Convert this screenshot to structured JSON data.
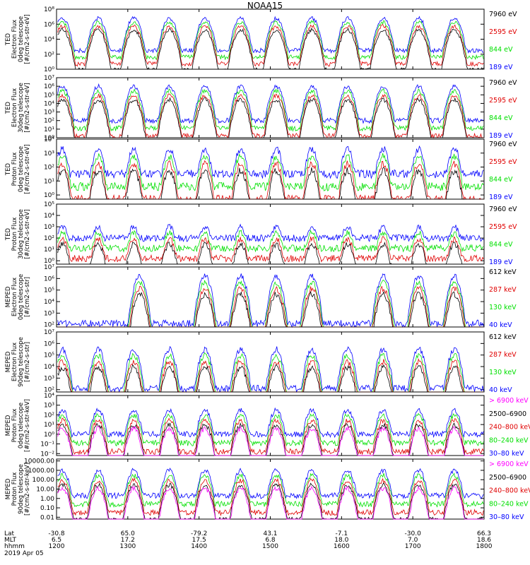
{
  "title": "NOAA15",
  "colors": {
    "black": "#000000",
    "blue": "#0000ff",
    "green": "#00e000",
    "red": "#e00000",
    "magenta": "#ff00ff"
  },
  "chart_data": [
    {
      "type": "line",
      "ylabel": [
        "TED",
        "Electron Flux",
        "0deg telescope",
        "[#/cm2-s-str-eV]"
      ],
      "ylog": true,
      "yticks": [
        [
          "10⁰",
          0
        ],
        [
          "10²",
          2
        ],
        [
          "10⁴",
          4
        ],
        [
          "10⁶",
          6
        ],
        [
          "10⁸",
          8
        ]
      ],
      "ylim_log10": [
        0,
        8
      ],
      "legend": [
        {
          "label": "7960 eV",
          "color": "#000000"
        },
        {
          "label": "2595 eV",
          "color": "#e00000"
        },
        {
          "label": "844 eV",
          "color": "#00e000"
        },
        {
          "label": "189 eV",
          "color": "#0000ff"
        }
      ],
      "peak_times": [
        "12:05",
        "12:35",
        "13:05",
        "13:35",
        "14:05",
        "14:35",
        "15:05",
        "15:35",
        "16:05",
        "16:35",
        "17:05",
        "17:35"
      ],
      "peak_log10": 6.8,
      "base_log10": 2.5
    },
    {
      "type": "line",
      "ylabel": [
        "TED",
        "Electron Flux",
        "30deg telescope",
        "[#/cm2-s-str-eV]"
      ],
      "ylog": true,
      "yticks": [
        [
          "10⁰",
          0
        ],
        [
          "10¹",
          1
        ],
        [
          "10²",
          2
        ],
        [
          "10³",
          3
        ],
        [
          "10⁴",
          4
        ],
        [
          "10⁵",
          5
        ],
        [
          "10⁶",
          6
        ],
        [
          "10⁷",
          7
        ]
      ],
      "ylim_log10": [
        0,
        7
      ],
      "legend": [
        {
          "label": "7960 eV",
          "color": "#000000"
        },
        {
          "label": "2595 eV",
          "color": "#e00000"
        },
        {
          "label": "844 eV",
          "color": "#00e000"
        },
        {
          "label": "189 eV",
          "color": "#0000ff"
        }
      ],
      "peak_times": [
        "12:05",
        "12:35",
        "13:05",
        "13:35",
        "14:05",
        "14:35",
        "15:05",
        "15:35",
        "16:05",
        "16:35",
        "17:05",
        "17:35"
      ],
      "peak_log10": 6.0,
      "base_log10": 2.0
    },
    {
      "type": "line",
      "ylabel": [
        "TED",
        "Proton Flux",
        "0deg telescope",
        "[#/cm2-s-str-eV]"
      ],
      "ylog": true,
      "yticks": [
        [
          "10⁰",
          0
        ],
        [
          "10¹",
          1
        ],
        [
          "10²",
          2
        ],
        [
          "10³",
          3
        ],
        [
          "10⁴",
          4
        ]
      ],
      "ylim_log10": [
        -0.3,
        4
      ],
      "legend": [
        {
          "label": "7960 eV",
          "color": "#000000"
        },
        {
          "label": "2595 eV",
          "color": "#e00000"
        },
        {
          "label": "844 eV",
          "color": "#00e000"
        },
        {
          "label": "189 eV",
          "color": "#0000ff"
        }
      ],
      "peak_times": [
        "12:05",
        "12:35",
        "13:05",
        "13:35",
        "14:05",
        "14:35",
        "15:05",
        "15:35",
        "16:05",
        "16:35",
        "17:05",
        "17:35"
      ],
      "peak_log10": 3.3,
      "base_log10": 1.5
    },
    {
      "type": "line",
      "ylabel": [
        "TED",
        "Proton Flux",
        "30deg telescope",
        "[#/cm2-s-str-eV]"
      ],
      "ylog": true,
      "yticks": [
        [
          "10⁰",
          0
        ],
        [
          "10¹",
          1
        ],
        [
          "10²",
          2
        ],
        [
          "10³",
          3
        ],
        [
          "10⁴",
          4
        ],
        [
          "10⁵",
          5
        ]
      ],
      "ylim_log10": [
        -0.3,
        5
      ],
      "legend": [
        {
          "label": "7960 eV",
          "color": "#000000"
        },
        {
          "label": "2595 eV",
          "color": "#e00000"
        },
        {
          "label": "844 eV",
          "color": "#00e000"
        },
        {
          "label": "189 eV",
          "color": "#0000ff"
        }
      ],
      "peak_times": [
        "12:05",
        "12:35",
        "13:05",
        "13:35",
        "14:05",
        "14:35",
        "15:05",
        "15:35",
        "16:05",
        "16:35",
        "17:05",
        "17:35"
      ],
      "peak_log10": 3.0,
      "base_log10": 2.0
    },
    {
      "type": "line",
      "ylabel": [
        "MEPED",
        "Electron Flux",
        "0deg telescope",
        "[#/cm2-s-str]"
      ],
      "ylog": true,
      "yticks": [
        [
          "10²",
          2
        ],
        [
          "10³",
          3
        ],
        [
          "10⁴",
          4
        ],
        [
          "10⁵",
          5
        ],
        [
          "10⁶",
          6
        ],
        [
          "10⁷",
          7
        ]
      ],
      "ylim_log10": [
        1.8,
        7
      ],
      "legend": [
        {
          "label": "612 keV",
          "color": "#000000"
        },
        {
          "label": "287 keV",
          "color": "#e00000"
        },
        {
          "label": "130 keV",
          "color": "#00e000"
        },
        {
          "label": "40 keV",
          "color": "#0000ff"
        }
      ],
      "peak_times": [
        "13:10",
        "14:05",
        "14:35",
        "15:05",
        "15:35",
        "16:35",
        "17:05",
        "17:35"
      ],
      "peak_log10": 6.2,
      "base_log10": 2.1
    },
    {
      "type": "line",
      "ylabel": [
        "MEPED",
        "Electron Flux",
        "90deg telescope",
        "[#/cm2-s-str]"
      ],
      "ylog": true,
      "yticks": [
        [
          "10²",
          2
        ],
        [
          "10³",
          3
        ],
        [
          "10⁴",
          4
        ],
        [
          "10⁵",
          5
        ],
        [
          "10⁶",
          6
        ],
        [
          "10⁷",
          7
        ]
      ],
      "ylim_log10": [
        1.8,
        7
      ],
      "legend": [
        {
          "label": "612 keV",
          "color": "#000000"
        },
        {
          "label": "287 keV",
          "color": "#e00000"
        },
        {
          "label": "130 keV",
          "color": "#00e000"
        },
        {
          "label": "40 keV",
          "color": "#0000ff"
        }
      ],
      "peak_times": [
        "12:05",
        "12:35",
        "13:05",
        "13:35",
        "14:05",
        "14:35",
        "15:05",
        "15:35",
        "16:05",
        "16:35",
        "17:05",
        "17:35"
      ],
      "peak_log10": 5.5,
      "base_log10": 2.1
    },
    {
      "type": "line",
      "ylabel": [
        "MEPED",
        "Proton Flux",
        "0deg telescope",
        "[#/cm2-s-str-keV]"
      ],
      "ylog": true,
      "yticks": [
        [
          "10⁻²",
          -2
        ],
        [
          "10⁻¹",
          -1
        ],
        [
          "10⁰",
          0
        ],
        [
          "10¹",
          1
        ],
        [
          "10²",
          2
        ],
        [
          "10³",
          3
        ],
        [
          "10⁴",
          4
        ]
      ],
      "ylim_log10": [
        -2.2,
        4
      ],
      "legend": [
        {
          "label": "> 6900 keV",
          "color": "#ff00ff"
        },
        {
          "label": "2500–6900",
          "color": "#000000"
        },
        {
          "label": "240–800 keV",
          "color": "#e00000"
        },
        {
          "label": "80–240 keV",
          "color": "#00e000"
        },
        {
          "label": "30–80 keV",
          "color": "#0000ff"
        }
      ],
      "peak_times": [
        "12:05",
        "12:35",
        "13:05",
        "13:35",
        "14:05",
        "14:35",
        "15:05",
        "15:35",
        "16:05",
        "16:35",
        "17:05",
        "17:35"
      ],
      "peak_log10": 2.5,
      "base_log10": 0.0
    },
    {
      "type": "line",
      "ylabel": [
        "MEPED",
        "Proton Flux",
        "90deg telescope",
        "[#/cm2-s-str-keV]"
      ],
      "ylog": true,
      "yticks": [
        [
          "0.01",
          -2
        ],
        [
          "0.10",
          -1
        ],
        [
          "1.00",
          0
        ],
        [
          "10.00",
          1
        ],
        [
          "100.00",
          2
        ],
        [
          "1000.00",
          3
        ],
        [
          "10000.00",
          4
        ]
      ],
      "ylim_log10": [
        -2.2,
        4.2
      ],
      "legend": [
        {
          "label": "> 6900 keV",
          "color": "#ff00ff"
        },
        {
          "label": "2500–6900",
          "color": "#000000"
        },
        {
          "label": "240–800 keV",
          "color": "#e00000"
        },
        {
          "label": "80–240 keV",
          "color": "#00e000"
        },
        {
          "label": "30–80 keV",
          "color": "#0000ff"
        }
      ],
      "peak_times": [
        "12:05",
        "12:35",
        "13:05",
        "13:35",
        "14:05",
        "14:35",
        "15:05",
        "15:35",
        "16:05",
        "16:35",
        "17:05",
        "17:35"
      ],
      "peak_log10": 3.0,
      "base_log10": 0.3
    }
  ],
  "x_axis": {
    "row_labels": [
      "Lat",
      "MLT",
      "hhmm"
    ],
    "ticks": [
      {
        "lat": "-30.8",
        "mlt": "6.5",
        "hhmm": "1200"
      },
      {
        "lat": "65.0",
        "mlt": "17.2",
        "hhmm": "1300"
      },
      {
        "lat": "-79.2",
        "mlt": "17.5",
        "hhmm": "1400"
      },
      {
        "lat": "43.1",
        "mlt": "6.8",
        "hhmm": "1500"
      },
      {
        "lat": "-7.1",
        "mlt": "18.0",
        "hhmm": "1600"
      },
      {
        "lat": "-30.0",
        "mlt": "7.0",
        "hhmm": "1700"
      },
      {
        "lat": "66.3",
        "mlt": "18.6",
        "hhmm": "1800"
      }
    ],
    "date": "2019 Apr 05"
  }
}
